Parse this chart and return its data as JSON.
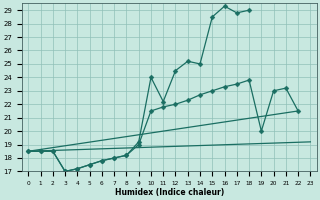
{
  "xlabel": "Humidex (Indice chaleur)",
  "bg_color": "#c8e8e0",
  "line_color": "#1a6e62",
  "grid_color": "#a0ccC4",
  "xlim": [
    -0.5,
    23.5
  ],
  "ylim": [
    17,
    29.5
  ],
  "xtick_labels": [
    "0",
    "1",
    "2",
    "3",
    "4",
    "5",
    "6",
    "7",
    "8",
    "9",
    "10",
    "11",
    "12",
    "13",
    "14",
    "15",
    "16",
    "17",
    "18",
    "19",
    "20",
    "21",
    "22",
    "23"
  ],
  "ytick_labels": [
    "17",
    "18",
    "19",
    "20",
    "21",
    "22",
    "23",
    "24",
    "25",
    "26",
    "27",
    "28",
    "29"
  ],
  "line1_x": [
    0,
    1,
    2,
    3,
    4,
    5,
    6,
    7,
    8,
    9,
    10,
    11,
    12,
    13,
    14,
    15,
    16,
    17,
    18
  ],
  "line1_y": [
    18.5,
    18.5,
    18.5,
    17.0,
    17.2,
    17.5,
    17.8,
    18.0,
    18.2,
    19.2,
    24.0,
    22.2,
    24.5,
    25.2,
    25.0,
    28.5,
    29.3,
    28.8,
    29.0
  ],
  "line2_x": [
    0,
    1,
    2,
    3,
    4,
    5,
    6,
    7,
    8,
    9,
    10,
    11,
    12,
    13,
    14,
    15,
    16,
    17,
    18,
    19,
    20,
    21,
    22
  ],
  "line2_y": [
    18.5,
    18.5,
    18.5,
    17.0,
    17.2,
    17.5,
    17.8,
    18.0,
    18.2,
    19.0,
    21.5,
    21.8,
    22.0,
    22.3,
    22.7,
    23.0,
    23.3,
    23.5,
    23.8,
    20.0,
    23.0,
    23.2,
    21.5
  ],
  "line3_x": [
    0,
    22
  ],
  "line3_y": [
    18.5,
    21.5
  ],
  "line4_x": [
    0,
    23
  ],
  "line4_y": [
    18.5,
    19.2
  ]
}
